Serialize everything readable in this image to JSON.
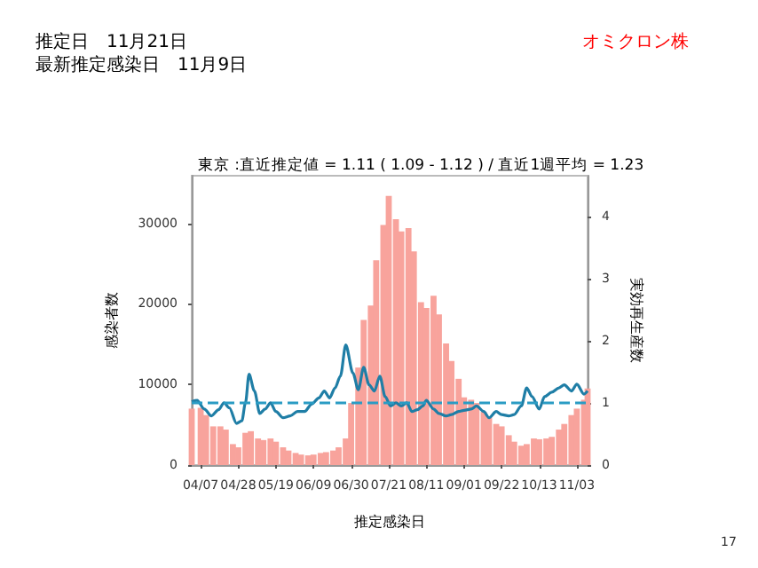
{
  "chart_data": {
    "type": "bar",
    "title": "東京 :直近推定値 = 1.11 ( 1.09 - 1.12 ) / 直近1週平均 = 1.23",
    "xlabel": "推定感染日",
    "ylabel": "感染者数",
    "y2label": "実効再生産数",
    "annotations": [
      "推定日　11月21日",
      "最新推定感染日　11月9日",
      "オミクロン株",
      "17"
    ],
    "xlim": [
      "--04-02",
      "--11-09"
    ],
    "xticks": [
      {
        "value": "--04-07",
        "label": "04/07"
      },
      {
        "value": "--04-28",
        "label": "04/28"
      },
      {
        "value": "--05-19",
        "label": "05/19"
      },
      {
        "value": "--06-09",
        "label": "06/09"
      },
      {
        "value": "--06-30",
        "label": "06/30"
      },
      {
        "value": "--07-21",
        "label": "07/21"
      },
      {
        "value": "--08-11",
        "label": "08/11"
      },
      {
        "value": "--09-01",
        "label": "09/01"
      },
      {
        "value": "--09-22",
        "label": "09/22"
      },
      {
        "value": "--10-13",
        "label": "10/13"
      },
      {
        "value": "--11-03",
        "label": "11/03"
      }
    ],
    "ylim": [
      0,
      35900
    ],
    "yticks": [
      0,
      10000,
      20000,
      30000
    ],
    "y2lim": [
      0,
      4.65
    ],
    "y2ticks": [
      0,
      1,
      2,
      3,
      4
    ],
    "grid": false,
    "marker": "none",
    "ref_lines": [
      {
        "axis": "y2",
        "value": 1,
        "color": "#2a9cc4",
        "line_style": "dashed"
      }
    ],
    "series": [
      {
        "color": "#f8a39c",
        "x": [
          "--04-02",
          "--04-07",
          "--04-10",
          "--04-14",
          "--04-18",
          "--04-21",
          "--04-25",
          "--04-28",
          "--05-02",
          "--05-05",
          "--05-09",
          "--05-12",
          "--05-16",
          "--05-19",
          "--05-23",
          "--05-26",
          "--05-30",
          "--06-02",
          "--06-06",
          "--06-09",
          "--06-13",
          "--06-16",
          "--06-20",
          "--06-23",
          "--06-27",
          "--06-30",
          "--07-04",
          "--07-07",
          "--07-11",
          "--07-14",
          "--07-18",
          "--07-21",
          "--07-25",
          "--07-28",
          "--08-01",
          "--08-04",
          "--08-08",
          "--08-11",
          "--08-15",
          "--08-18",
          "--08-22",
          "--08-25",
          "--08-29",
          "--09-01",
          "--09-05",
          "--09-08",
          "--09-12",
          "--09-15",
          "--09-19",
          "--09-22",
          "--09-26",
          "--09-29",
          "--10-03",
          "--10-06",
          "--10-10",
          "--10-13",
          "--10-17",
          "--10-20",
          "--10-24",
          "--10-27",
          "--10-31",
          "--11-03",
          "--11-07",
          "--11-09"
        ],
        "values": [
          7000,
          7100,
          6200,
          4800,
          4800,
          4400,
          2600,
          2200,
          4000,
          4200,
          3300,
          3100,
          3300,
          2900,
          2200,
          1800,
          1500,
          1300,
          1200,
          1300,
          1500,
          1600,
          1800,
          2200,
          3300,
          7700,
          12100,
          18000,
          19800,
          25400,
          29800,
          33400,
          30500,
          29000,
          29400,
          26500,
          20200,
          19500,
          21000,
          18700,
          15100,
          12900,
          10700,
          8400,
          8100,
          7700,
          6600,
          5900,
          5100,
          4800,
          3700,
          2900,
          2400,
          2600,
          3300,
          3200,
          3300,
          3500,
          4400,
          5100,
          6200,
          7000,
          8100,
          9500
        ]
      },
      {
        "type": "line",
        "axis": "y2",
        "color": "#1f7ea6",
        "line_style": "solid",
        "x": [
          "--04-02",
          "--04-05",
          "--04-09",
          "--04-13",
          "--04-17",
          "--04-20",
          "--04-23",
          "--04-27",
          "--04-30",
          "--05-02",
          "--05-04",
          "--05-07",
          "--05-10",
          "--05-13",
          "--05-16",
          "--05-19",
          "--05-23",
          "--05-27",
          "--05-31",
          "--06-04",
          "--06-08",
          "--06-12",
          "--06-15",
          "--06-18",
          "--06-21",
          "--06-24",
          "--06-27",
          "--07-01",
          "--07-04",
          "--07-07",
          "--07-10",
          "--07-13",
          "--07-16",
          "--07-19",
          "--07-22",
          "--07-25",
          "--07-28",
          "--07-31",
          "--08-03",
          "--08-06",
          "--08-09",
          "--08-11",
          "--08-15",
          "--08-18",
          "--08-22",
          "--08-25",
          "--08-29",
          "--09-01",
          "--09-05",
          "--09-08",
          "--09-12",
          "--09-15",
          "--09-19",
          "--09-22",
          "--09-26",
          "--09-29",
          "--10-03",
          "--10-06",
          "--10-09",
          "--10-13",
          "--10-16",
          "--10-20",
          "--10-24",
          "--10-27",
          "--10-31",
          "--11-03",
          "--11-07",
          "--11-09"
        ],
        "values": [
          1.02,
          1.04,
          0.9,
          0.79,
          0.89,
          1.0,
          0.92,
          0.67,
          0.71,
          1.0,
          1.46,
          1.19,
          0.83,
          0.9,
          1.0,
          0.86,
          0.76,
          0.79,
          0.86,
          0.86,
          0.98,
          1.08,
          1.19,
          1.08,
          1.24,
          1.43,
          1.93,
          1.48,
          1.21,
          1.57,
          1.29,
          1.19,
          1.43,
          1.1,
          0.95,
          1.0,
          0.95,
          1.0,
          0.86,
          0.89,
          0.95,
          1.04,
          0.9,
          0.83,
          0.79,
          0.81,
          0.86,
          0.88,
          0.9,
          0.95,
          0.86,
          0.76,
          0.86,
          0.81,
          0.79,
          0.81,
          0.95,
          1.24,
          1.1,
          0.9,
          1.1,
          1.17,
          1.24,
          1.29,
          1.19,
          1.3,
          1.14,
          1.19
        ]
      }
    ]
  }
}
